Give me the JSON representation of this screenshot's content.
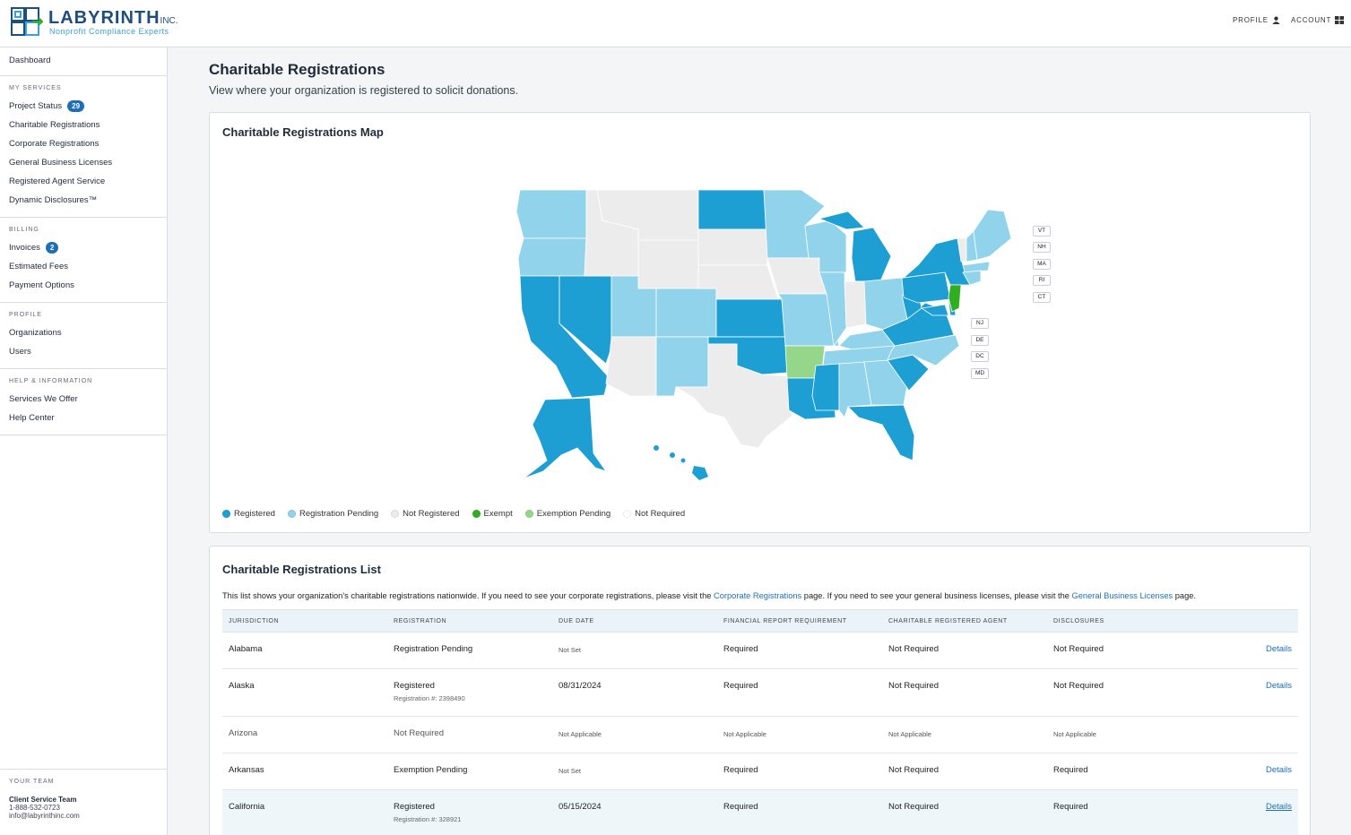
{
  "brand": {
    "name": "LABYRINTH",
    "suffix": "INC.",
    "tagline": "Nonprofit Compliance Experts"
  },
  "header": {
    "profile": "PROFILE",
    "account": "ACCOUNT"
  },
  "sidebar": {
    "dashboard": "Dashboard",
    "sections": [
      {
        "title": "MY SERVICES",
        "items": [
          {
            "label": "Project Status",
            "badge": "29"
          },
          {
            "label": "Charitable Registrations"
          },
          {
            "label": "Corporate Registrations"
          },
          {
            "label": "General Business Licenses"
          },
          {
            "label": "Registered Agent Service"
          },
          {
            "label": "Dynamic Disclosures™"
          }
        ]
      },
      {
        "title": "BILLING",
        "items": [
          {
            "label": "Invoices",
            "badge": "2"
          },
          {
            "label": "Estimated Fees"
          },
          {
            "label": "Payment Options"
          }
        ]
      },
      {
        "title": "PROFILE",
        "items": [
          {
            "label": "Organizations"
          },
          {
            "label": "Users"
          }
        ]
      },
      {
        "title": "HELP & INFORMATION",
        "items": [
          {
            "label": "Services We Offer"
          },
          {
            "label": "Help Center"
          }
        ]
      }
    ],
    "team": {
      "title": "YOUR TEAM",
      "name": "Client Service Team",
      "phone": "1-888-532-0723",
      "email": "info@labyrinthinc.com"
    }
  },
  "page": {
    "title": "Charitable Registrations",
    "subtitle": "View where your organization is registered to solicit donations."
  },
  "map_card": {
    "title": "Charitable Registrations Map",
    "small_state_tags": [
      "VT",
      "NH",
      "MA",
      "RI",
      "CT",
      "NJ",
      "DE",
      "DC",
      "MD"
    ],
    "legend": [
      {
        "label": "Registered",
        "color": "#1e9fd4"
      },
      {
        "label": "Registration Pending",
        "color": "#91d3ea"
      },
      {
        "label": "Not Registered",
        "color": "#ececec"
      },
      {
        "label": "Exempt",
        "color": "#2fae1f"
      },
      {
        "label": "Exemption Pending",
        "color": "#94d68a"
      },
      {
        "label": "Not Required",
        "color": "#ffffff"
      }
    ]
  },
  "list_card": {
    "title": "Charitable Registrations List",
    "intro_1": "This list shows your organization's charitable registrations nationwide. If you need to see your corporate registrations, please visit the ",
    "intro_link_1": "Corporate Registrations",
    "intro_2": " page. If you need to see your general business licenses, please visit the ",
    "intro_link_2": "General Business Licenses",
    "intro_3": " page.",
    "columns": [
      "JURISDICTION",
      "REGISTRATION",
      "DUE DATE",
      "FINANCIAL REPORT REQUIREMENT",
      "CHARITABLE REGISTERED AGENT",
      "DISCLOSURES"
    ],
    "rows": [
      {
        "jurisdiction": "Alabama",
        "registration": "Registration Pending",
        "reg_no": "",
        "due": "Not Set",
        "financial": "Required",
        "agent": "Not Required",
        "disclosures": "Not Required",
        "details": "Details"
      },
      {
        "jurisdiction": "Alaska",
        "registration": "Registered",
        "reg_no": "Registration #: 2398490",
        "due": "08/31/2024",
        "financial": "Required",
        "agent": "Not Required",
        "disclosures": "Not Required",
        "details": "Details"
      },
      {
        "jurisdiction": "Arizona",
        "registration": "Not Required",
        "reg_no": "",
        "due": "Not Applicable",
        "financial": "Not Applicable",
        "agent": "Not Applicable",
        "disclosures": "Not Applicable",
        "details": ""
      },
      {
        "jurisdiction": "Arkansas",
        "registration": "Exemption Pending",
        "reg_no": "",
        "due": "Not Set",
        "financial": "Required",
        "agent": "Not Required",
        "disclosures": "Required",
        "details": "Details"
      },
      {
        "jurisdiction": "California",
        "registration": "Registered",
        "reg_no": "Registration #: 328921",
        "due": "05/15/2024",
        "financial": "Required",
        "agent": "Not Required",
        "disclosures": "Required",
        "details": "Details"
      }
    ]
  }
}
